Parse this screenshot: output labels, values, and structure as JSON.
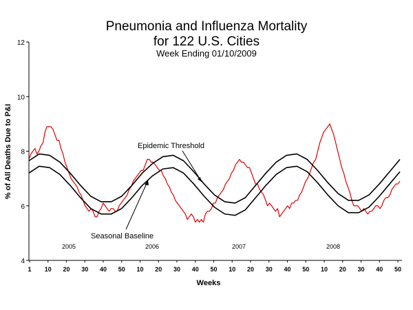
{
  "chart_data": {
    "type": "line",
    "title_lines": [
      "Pneumonia and Influenza Mortality",
      "for 122 U.S. Cities"
    ],
    "subtitle": "Week Ending 01/10/2009",
    "xlabel": "Weeks",
    "ylabel": "% of All Deaths Due to P&I",
    "ylim": [
      4,
      12
    ],
    "yticks": [
      4,
      6,
      8,
      10,
      12
    ],
    "xtick_labels": [
      "1",
      "10",
      "20",
      "30",
      "40",
      "50",
      "10",
      "20",
      "30",
      "40",
      "50",
      "10",
      "20",
      "30",
      "40",
      "50",
      "10",
      "20",
      "30",
      "40",
      "50"
    ],
    "year_labels": [
      "2005",
      "2006",
      "2007",
      "2008"
    ],
    "grid": false,
    "legend": "none",
    "annotations": {
      "threshold": "Epidemic Threshold",
      "baseline": "Seasonal Baseline"
    },
    "colors": {
      "observed": "#dd0000",
      "curves": "#000000"
    },
    "series": [
      {
        "key": "observed",
        "values": [
          7.7,
          7.9,
          8.0,
          8.1,
          7.9,
          8.0,
          8.2,
          8.3,
          8.7,
          8.9,
          8.9,
          8.9,
          8.8,
          8.6,
          8.4,
          8.4,
          8.1,
          7.9,
          7.6,
          7.4,
          7.2,
          7.0,
          6.9,
          6.8,
          6.7,
          6.5,
          6.4,
          6.2,
          6.0,
          5.9,
          5.8,
          5.9,
          5.8,
          5.6,
          5.6,
          5.8,
          5.9,
          6.1,
          6.0,
          5.9,
          5.8,
          5.9,
          5.9,
          5.8,
          5.8,
          6.0,
          6.1,
          6.2,
          6.3,
          6.4,
          6.6,
          6.7,
          6.9,
          7.0,
          7.1,
          7.2,
          7.3,
          7.3,
          7.5,
          7.7,
          7.7,
          7.6,
          7.6,
          7.5,
          7.4,
          7.3,
          7.3,
          7.1,
          7.0,
          6.8,
          6.7,
          6.5,
          6.4,
          6.2,
          6.1,
          6.0,
          5.9,
          5.8,
          5.7,
          5.5,
          5.6,
          5.7,
          5.6,
          5.4,
          5.5,
          5.4,
          5.5,
          5.4,
          5.7,
          5.8,
          5.8,
          5.9,
          6.1,
          6.1,
          6.3,
          6.4,
          6.5,
          6.6,
          6.8,
          6.9,
          7.0,
          7.2,
          7.3,
          7.5,
          7.6,
          7.7,
          7.6,
          7.6,
          7.5,
          7.4,
          7.4,
          7.2,
          7.0,
          6.8,
          6.8,
          6.6,
          6.5,
          6.4,
          6.2,
          6.0,
          6.1,
          6.0,
          5.9,
          5.8,
          5.9,
          5.6,
          5.7,
          5.8,
          5.9,
          6.0,
          5.9,
          6.1,
          6.1,
          6.2,
          6.2,
          6.4,
          6.5,
          6.7,
          6.9,
          7.0,
          7.2,
          7.4,
          7.6,
          7.7,
          8.0,
          8.3,
          8.5,
          8.7,
          8.8,
          8.9,
          9.0,
          8.8,
          8.6,
          8.3,
          8.0,
          7.7,
          7.4,
          7.2,
          6.9,
          6.7,
          6.5,
          6.2,
          6.0,
          6.0,
          6.0,
          5.9,
          5.8,
          5.9,
          5.8,
          5.7,
          5.8,
          5.8,
          5.9,
          6.0,
          6.0,
          5.9,
          6.0,
          6.2,
          6.3,
          6.3,
          6.4,
          6.6,
          6.7,
          6.8,
          6.8,
          6.9
        ]
      },
      {
        "key": "threshold",
        "values": [
          7.65,
          7.9,
          7.85,
          7.6,
          7.2,
          6.75,
          6.35,
          6.15,
          6.15,
          6.35,
          6.75,
          7.2,
          7.55,
          7.8,
          7.85,
          7.65,
          7.25,
          6.8,
          6.4,
          6.15,
          6.1,
          6.3,
          6.75,
          7.2,
          7.6,
          7.85,
          7.9,
          7.7,
          7.3,
          6.85,
          6.45,
          6.2,
          6.2,
          6.4,
          6.8,
          7.25,
          7.7
        ]
      },
      {
        "key": "baseline",
        "values": [
          7.2,
          7.45,
          7.4,
          7.15,
          6.75,
          6.3,
          5.9,
          5.7,
          5.7,
          5.9,
          6.3,
          6.75,
          7.1,
          7.35,
          7.4,
          7.2,
          6.8,
          6.35,
          5.95,
          5.7,
          5.65,
          5.85,
          6.3,
          6.75,
          7.15,
          7.4,
          7.45,
          7.25,
          6.85,
          6.4,
          6.0,
          5.75,
          5.75,
          5.95,
          6.35,
          6.8,
          7.25
        ]
      }
    ]
  }
}
